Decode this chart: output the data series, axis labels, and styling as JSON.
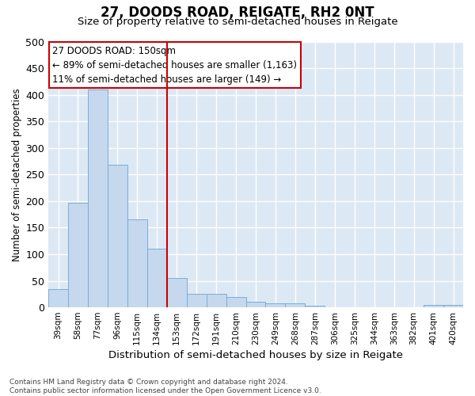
{
  "title": "27, DOODS ROAD, REIGATE, RH2 0NT",
  "subtitle": "Size of property relative to semi-detached houses in Reigate",
  "xlabel": "Distribution of semi-detached houses by size in Reigate",
  "ylabel": "Number of semi-detached properties",
  "categories": [
    "39sqm",
    "58sqm",
    "77sqm",
    "96sqm",
    "115sqm",
    "134sqm",
    "153sqm",
    "172sqm",
    "191sqm",
    "210sqm",
    "230sqm",
    "249sqm",
    "268sqm",
    "287sqm",
    "306sqm",
    "325sqm",
    "344sqm",
    "363sqm",
    "382sqm",
    "401sqm",
    "420sqm"
  ],
  "values": [
    35,
    197,
    410,
    268,
    165,
    110,
    55,
    25,
    25,
    20,
    10,
    8,
    8,
    3,
    0,
    0,
    0,
    0,
    0,
    5,
    5
  ],
  "bar_color": "#c5d8ee",
  "bar_edge_color": "#7aaed6",
  "vline_index": 6,
  "vline_color": "#cc0000",
  "annotation_line1": "27 DOODS ROAD: 150sqm",
  "annotation_line2": "← 89% of semi-detached houses are smaller (1,163)",
  "annotation_line3": "11% of semi-detached houses are larger (149) →",
  "annotation_box_facecolor": "#ffffff",
  "annotation_box_edgecolor": "#cc0000",
  "ylim": [
    0,
    500
  ],
  "yticks": [
    0,
    50,
    100,
    150,
    200,
    250,
    300,
    350,
    400,
    450,
    500
  ],
  "plot_bg_color": "#dde8f5",
  "grid_color": "#ffffff",
  "footer": "Contains HM Land Registry data © Crown copyright and database right 2024.\nContains public sector information licensed under the Open Government Licence v3.0."
}
